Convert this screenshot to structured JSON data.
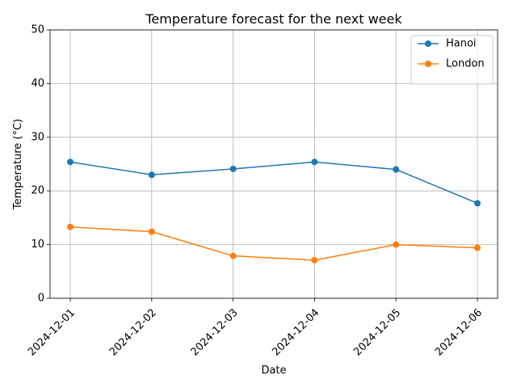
{
  "chart_data": {
    "type": "line",
    "title": "Temperature forecast for the next week",
    "xlabel": "Date",
    "ylabel": "Temperature (°C)",
    "x": [
      "2024-12-01",
      "2024-12-02",
      "2024-12-03",
      "2024-12-04",
      "2024-12-05",
      "2024-12-06"
    ],
    "ylim": [
      0,
      50
    ],
    "yticks": [
      0,
      10,
      20,
      30,
      40,
      50
    ],
    "grid": true,
    "legend_position": "top-right",
    "series": [
      {
        "name": "Hanoi",
        "color": "#1f77b4",
        "values": [
          25.4,
          23.0,
          24.1,
          25.4,
          24.0,
          17.7
        ]
      },
      {
        "name": "London",
        "color": "#ff7f0e",
        "values": [
          13.3,
          12.4,
          7.9,
          7.1,
          10.0,
          9.4
        ]
      }
    ]
  }
}
